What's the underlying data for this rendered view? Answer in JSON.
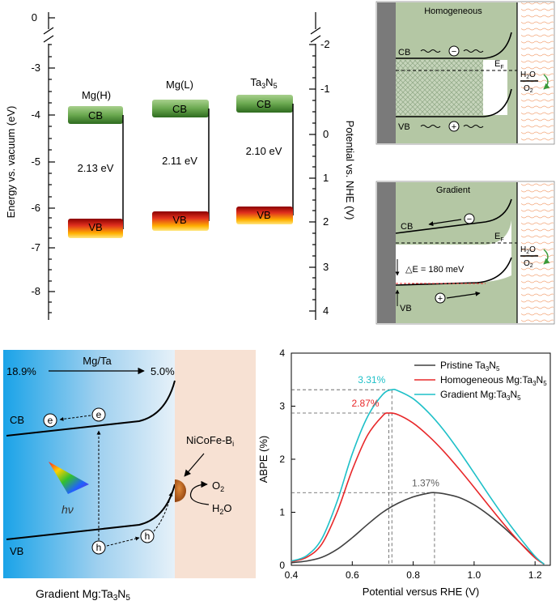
{
  "band_diagram": {
    "left_axis": {
      "label": "Energy vs. vacuum (eV)",
      "ticks": [
        "0",
        "-3",
        "-4",
        "-5",
        "-6",
        "-7",
        "-8"
      ]
    },
    "right_axis": {
      "label": "Potential vs. NHE (V)",
      "ticks": [
        "-2",
        "-1",
        "0",
        "1",
        "2",
        "3",
        "4"
      ]
    },
    "samples": [
      {
        "name": "Mg(H)",
        "cb": "CB",
        "vb": "VB",
        "gap": "2.13 eV"
      },
      {
        "name": "Mg(L)",
        "cb": "CB",
        "vb": "VB",
        "gap": "2.11 eV"
      },
      {
        "name_main": "Ta",
        "name_sub1": "3",
        "name_mid": "N",
        "name_sub2": "5",
        "cb": "CB",
        "vb": "VB",
        "gap": "2.10 eV"
      }
    ]
  },
  "homogeneous_panel": {
    "title": "Homogeneous",
    "cb": "CB",
    "vb": "VB",
    "ef_main": "E",
    "ef_sub": "F",
    "minus": "−",
    "plus": "+",
    "h2o_main": "H",
    "h2o_sub": "2",
    "h2o_end": "O",
    "o2_main": "O",
    "o2_sub": "2"
  },
  "gradient_panel": {
    "title": "Gradient",
    "cb": "CB",
    "vb": "VB",
    "ef_main": "E",
    "ef_sub": "F",
    "delta_e": "△E = 180 meV",
    "minus": "−",
    "plus": "+",
    "h2o_main": "H",
    "h2o_sub": "2",
    "h2o_end": "O",
    "o2_main": "O",
    "o2_sub": "2"
  },
  "scheme": {
    "top_left": "18.9%",
    "top_mid": "Mg/Ta",
    "top_right": "5.0%",
    "cb": "CB",
    "vb": "VB",
    "e": "e",
    "h": "h",
    "hv": "hν",
    "catalyst_main": "NiCoFe-B",
    "catalyst_sub": "i",
    "o2_main": "O",
    "o2_sub": "2",
    "h2o_main": "H",
    "h2o_sub": "2",
    "h2o_end": "O",
    "caption_main": "Gradient Mg:Ta",
    "caption_sub1": "3",
    "caption_mid": "N",
    "caption_sub2": "5"
  },
  "chart_data": {
    "type": "line",
    "xlabel": "Potential versus RHE (V)",
    "ylabel": "ABPE (%)",
    "xlim": [
      0.4,
      1.25
    ],
    "ylim": [
      0,
      4
    ],
    "xticks": [
      "0.4",
      "0.6",
      "0.8",
      "1.0",
      "1.2"
    ],
    "yticks": [
      "0",
      "1",
      "2",
      "3",
      "4"
    ],
    "legend_position": "top-right",
    "series": [
      {
        "name": "Pristine Ta3N5",
        "color": "#404040",
        "x": [
          0.4,
          0.45,
          0.5,
          0.55,
          0.6,
          0.65,
          0.7,
          0.75,
          0.8,
          0.85,
          0.87,
          0.9,
          0.95,
          1.0,
          1.05,
          1.1,
          1.15,
          1.2,
          1.23
        ],
        "values": [
          0.05,
          0.08,
          0.15,
          0.3,
          0.52,
          0.77,
          1.0,
          1.17,
          1.29,
          1.36,
          1.37,
          1.35,
          1.28,
          1.14,
          0.94,
          0.7,
          0.43,
          0.15,
          0.02
        ]
      },
      {
        "name": "Homogeneous Mg:Ta3N5",
        "color": "#e8282a",
        "x": [
          0.4,
          0.45,
          0.5,
          0.55,
          0.6,
          0.65,
          0.7,
          0.72,
          0.75,
          0.8,
          0.85,
          0.9,
          0.95,
          1.0,
          1.05,
          1.1,
          1.15,
          1.2,
          1.23
        ],
        "values": [
          0.07,
          0.15,
          0.4,
          1.0,
          1.8,
          2.45,
          2.82,
          2.87,
          2.84,
          2.68,
          2.44,
          2.15,
          1.82,
          1.47,
          1.11,
          0.76,
          0.43,
          0.14,
          0.02
        ]
      },
      {
        "name": "Gradient Mg:Ta3N5",
        "color": "#1ec0c8",
        "x": [
          0.4,
          0.45,
          0.5,
          0.55,
          0.6,
          0.65,
          0.7,
          0.73,
          0.75,
          0.8,
          0.85,
          0.9,
          0.95,
          1.0,
          1.05,
          1.1,
          1.15,
          1.2,
          1.23
        ],
        "values": [
          0.08,
          0.18,
          0.5,
          1.2,
          2.1,
          2.8,
          3.22,
          3.31,
          3.29,
          3.14,
          2.88,
          2.55,
          2.16,
          1.74,
          1.31,
          0.9,
          0.52,
          0.17,
          0.02
        ]
      }
    ],
    "legend": [
      {
        "main": "Pristine Ta",
        "s1": "3",
        "m": "N",
        "s2": "5"
      },
      {
        "main": "Homogeneous Mg:Ta",
        "s1": "3",
        "m": "N",
        "s2": "5"
      },
      {
        "main": "Gradient Mg:Ta",
        "s1": "3",
        "m": "N",
        "s2": "5"
      }
    ],
    "annotations": [
      {
        "text": "3.31%",
        "color": "#1ec0c8",
        "x": 0.73,
        "y": 3.31
      },
      {
        "text": "2.87%",
        "color": "#e8282a",
        "x": 0.72,
        "y": 2.87
      },
      {
        "text": "1.37%",
        "color": "#606060",
        "x": 0.87,
        "y": 1.37
      }
    ]
  }
}
